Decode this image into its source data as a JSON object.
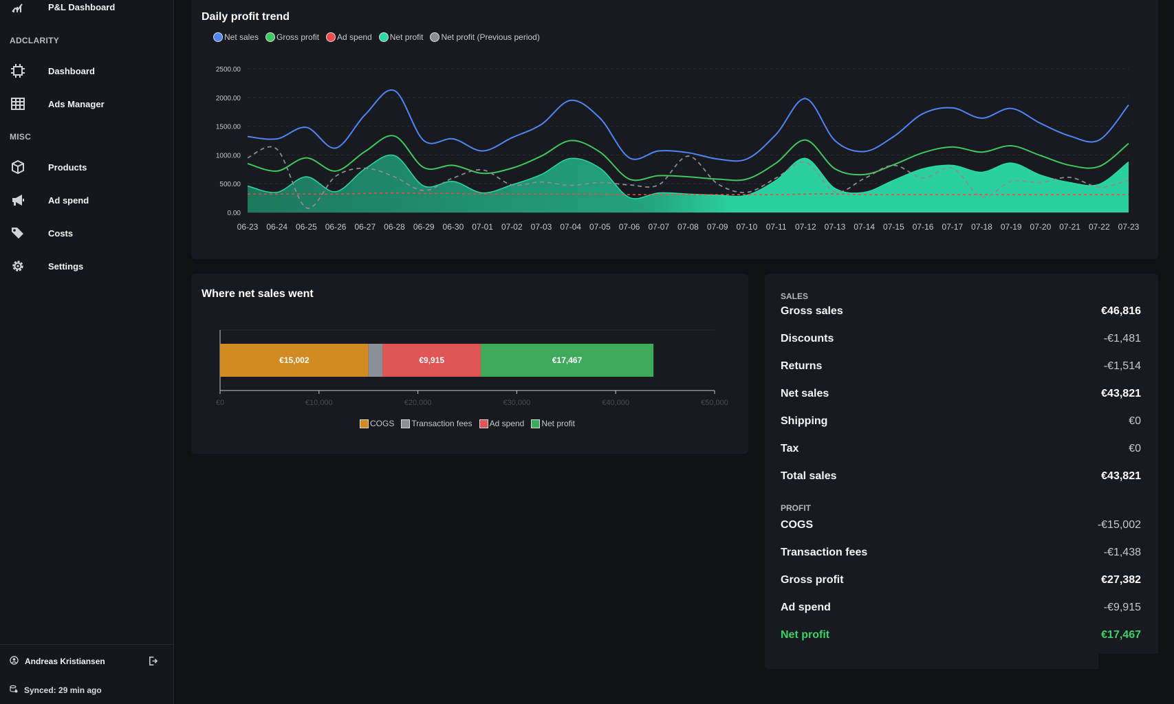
{
  "sidebar": {
    "top_item": {
      "label": "P&L Dashboard",
      "icon": "chart-bars-icon"
    },
    "sections": [
      {
        "label": "ADCLARITY"
      },
      {
        "label": "MISC"
      }
    ],
    "items": [
      {
        "label": "Dashboard",
        "icon": "chip-icon"
      },
      {
        "label": "Ads Manager",
        "icon": "grid-icon"
      },
      {
        "label": "Products",
        "icon": "box-icon"
      },
      {
        "label": "Ad spend",
        "icon": "megaphone-icon"
      },
      {
        "label": "Costs",
        "icon": "tags-icon"
      },
      {
        "label": "Settings",
        "icon": "gear-icon"
      }
    ],
    "user": {
      "name": "Andreas Kristiansen"
    },
    "sync": {
      "text": "Synced: 29 min ago"
    }
  },
  "trend": {
    "title": "Daily profit trend",
    "legend": [
      {
        "label": "Net sales",
        "color": "#4f86f7"
      },
      {
        "label": "Gross profit",
        "color": "#3ec95c"
      },
      {
        "label": "Ad spend",
        "color": "#ee4a4a"
      },
      {
        "label": "Net profit",
        "color": "#2bd9a4"
      },
      {
        "label": "Net profit (Previous period)",
        "color": "#8a8d96"
      }
    ]
  },
  "breakdown": {
    "title": "Where net sales went",
    "legend": [
      {
        "label": "COGS",
        "color": "#d08c22"
      },
      {
        "label": "Transaction fees",
        "color": "#8b8f98"
      },
      {
        "label": "Ad spend",
        "color": "#e05555"
      },
      {
        "label": "Net profit",
        "color": "#3eaa5c"
      }
    ]
  },
  "summary": {
    "sales_heading": "SALES",
    "profit_heading": "PROFIT",
    "sales_rows": [
      {
        "label": "Gross sales",
        "value": "€46,816"
      },
      {
        "label": "Discounts",
        "value": "-€1,481"
      },
      {
        "label": "Returns",
        "value": "-€1,514"
      },
      {
        "label": "Net sales",
        "value": "€43,821"
      },
      {
        "label": "Shipping",
        "value": "€0"
      },
      {
        "label": "Tax",
        "value": "€0"
      },
      {
        "label": "Total sales",
        "value": "€43,821"
      }
    ],
    "profit_rows": [
      {
        "label": "COGS",
        "value": "-€15,002"
      },
      {
        "label": "Transaction fees",
        "value": "-€1,438"
      },
      {
        "label": "Gross profit",
        "value": "€27,382"
      },
      {
        "label": "Ad spend",
        "value": "-€9,915"
      },
      {
        "label": "Net profit",
        "value": "€17,467"
      }
    ]
  },
  "chart_data": [
    {
      "type": "line",
      "title": "Daily profit trend",
      "x": [
        "06-23",
        "06-24",
        "06-25",
        "06-26",
        "06-27",
        "06-28",
        "06-29",
        "06-30",
        "07-01",
        "07-02",
        "07-03",
        "07-04",
        "07-05",
        "07-06",
        "07-07",
        "07-08",
        "07-09",
        "07-10",
        "07-11",
        "07-12",
        "07-13",
        "07-14",
        "07-15",
        "07-16",
        "07-17",
        "07-18",
        "07-19",
        "07-20",
        "07-21",
        "07-22",
        "07-23"
      ],
      "ylim": [
        0,
        2500
      ],
      "yticks": [
        "0.00",
        "500.00",
        "1000.00",
        "1500.00",
        "2000.00",
        "2500.00"
      ],
      "grid": true,
      "legend_position": "top-left",
      "series": [
        {
          "name": "Net sales",
          "color": "#4f86f7",
          "values": [
            1320,
            1280,
            1480,
            1120,
            1700,
            2120,
            1250,
            1280,
            1070,
            1300,
            1530,
            1950,
            1640,
            950,
            1070,
            1040,
            930,
            930,
            1360,
            1980,
            1250,
            1060,
            1320,
            1720,
            1820,
            1640,
            1810,
            1550,
            1330,
            1260,
            1870
          ]
        },
        {
          "name": "Gross profit",
          "color": "#3ec95c",
          "values": [
            850,
            720,
            950,
            720,
            1060,
            1330,
            780,
            820,
            680,
            770,
            980,
            1250,
            1050,
            580,
            640,
            620,
            580,
            580,
            860,
            1260,
            760,
            660,
            830,
            1040,
            1140,
            1050,
            1160,
            990,
            820,
            800,
            1200
          ]
        },
        {
          "name": "Ad spend",
          "color": "#ee4a4a",
          "values": [
            320,
            320,
            320,
            320,
            330,
            340,
            330,
            330,
            320,
            320,
            320,
            320,
            320,
            310,
            310,
            310,
            310,
            310,
            310,
            320,
            320,
            310,
            310,
            310,
            310,
            310,
            310,
            310,
            310,
            310,
            310
          ]
        },
        {
          "name": "Net profit",
          "color": "#2bd9a4",
          "values": [
            460,
            350,
            620,
            360,
            760,
            990,
            460,
            540,
            340,
            480,
            660,
            940,
            770,
            260,
            340,
            320,
            300,
            300,
            560,
            940,
            420,
            350,
            560,
            760,
            820,
            700,
            860,
            650,
            520,
            490,
            880
          ]
        },
        {
          "name": "Net profit (Previous period)",
          "color": "#8a8d96",
          "dashed": true,
          "values": [
            950,
            1100,
            80,
            630,
            770,
            620,
            380,
            600,
            740,
            480,
            530,
            470,
            520,
            480,
            480,
            980,
            500,
            350,
            600,
            870,
            360,
            590,
            820,
            600,
            770,
            270,
            540,
            520,
            610,
            440,
            560
          ]
        }
      ]
    },
    {
      "type": "bar",
      "title": "Where net sales went",
      "orientation": "horizontal",
      "stacked": true,
      "xlim": [
        0,
        50000
      ],
      "xticks": [
        "€0",
        "€10,000",
        "€20,000",
        "€30,000",
        "€40,000",
        "€50,000"
      ],
      "legend_position": "bottom",
      "series": [
        {
          "name": "COGS",
          "color": "#d08c22",
          "values": [
            15002
          ],
          "label": "€15,002"
        },
        {
          "name": "Transaction fees",
          "color": "#8b8f98",
          "values": [
            1438
          ],
          "label": ""
        },
        {
          "name": "Ad spend",
          "color": "#e05555",
          "values": [
            9915
          ],
          "label": "€9,915"
        },
        {
          "name": "Net profit",
          "color": "#3eaa5c",
          "values": [
            17467
          ],
          "label": "€17,467"
        }
      ]
    }
  ]
}
